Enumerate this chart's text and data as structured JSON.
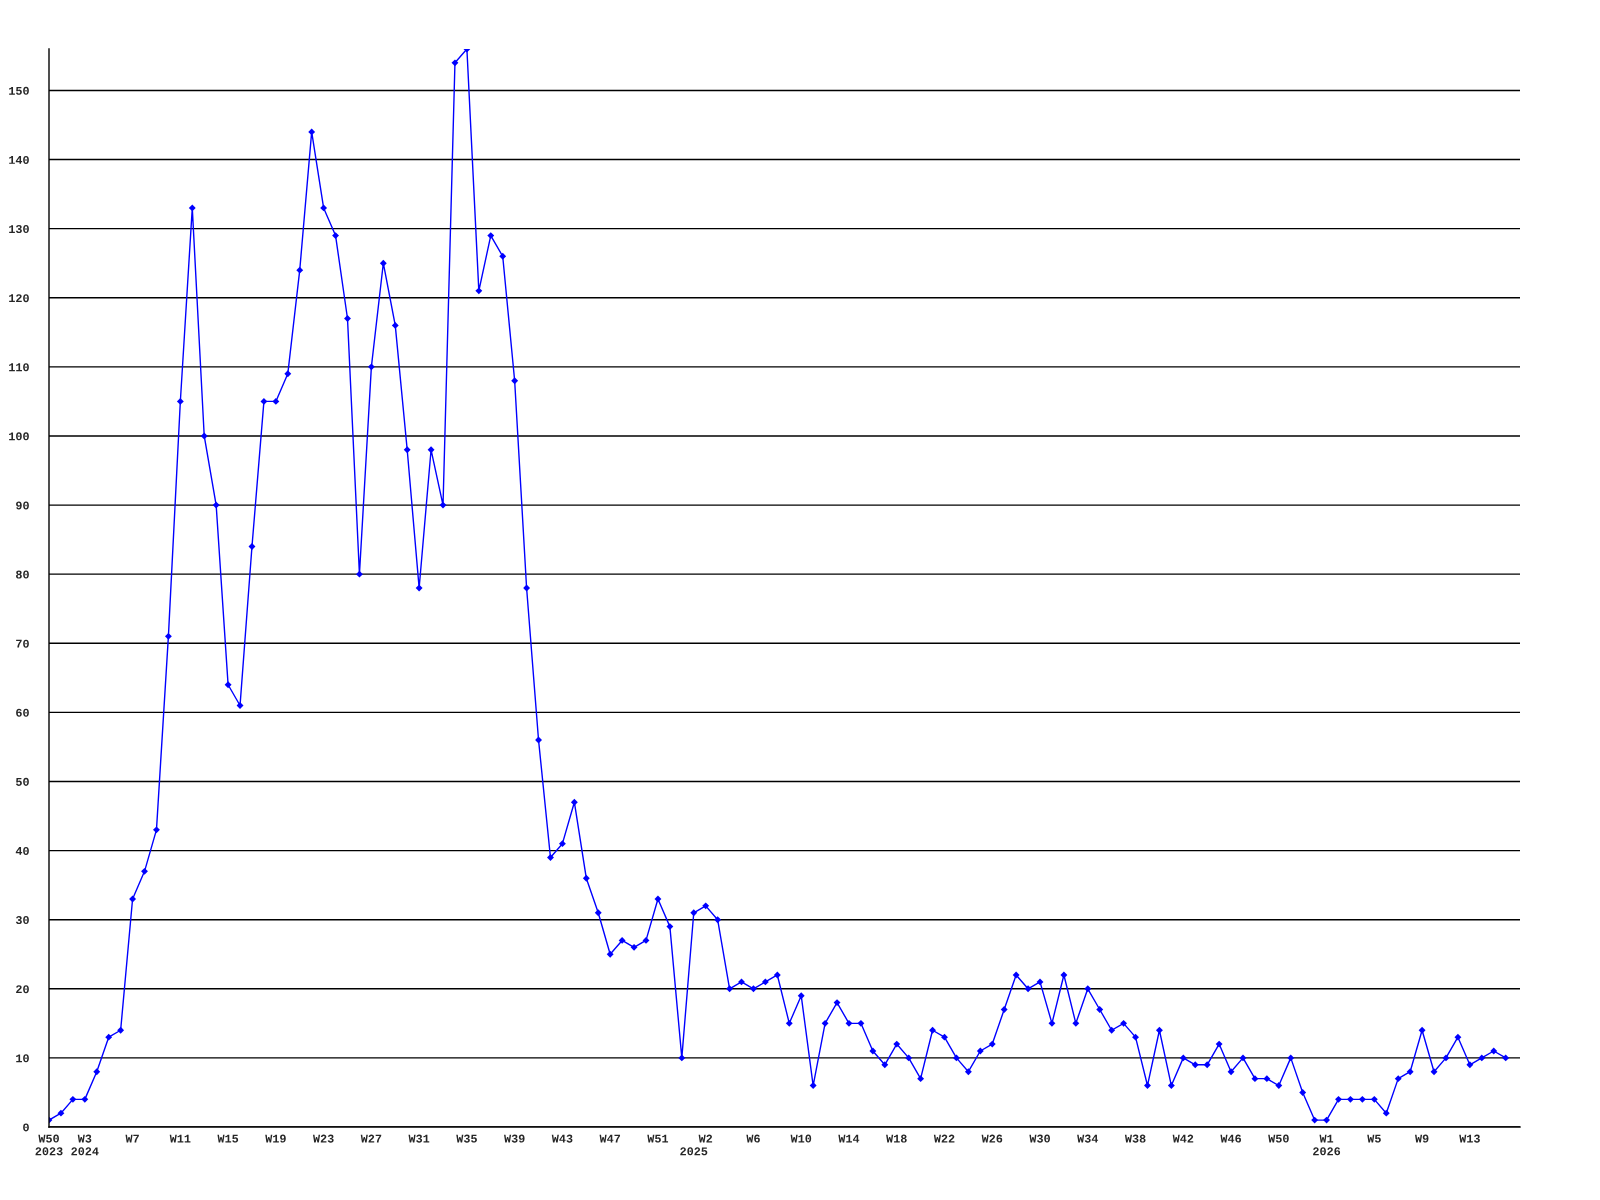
{
  "chart_data": {
    "type": "line",
    "categories": [
      "W50\n2023",
      null,
      null,
      "W3\n2024",
      null,
      null,
      null,
      "W7",
      null,
      null,
      null,
      "W11",
      null,
      null,
      null,
      "W15",
      null,
      null,
      null,
      "W19",
      null,
      null,
      null,
      "W23",
      null,
      null,
      null,
      "W27",
      null,
      null,
      null,
      "W31",
      null,
      null,
      null,
      "W35",
      null,
      null,
      null,
      "W39",
      null,
      null,
      null,
      "W43",
      null,
      null,
      null,
      "W47",
      null,
      null,
      null,
      "W51",
      null,
      null,
      "\n2025",
      "W2",
      null,
      null,
      null,
      "W6",
      null,
      null,
      null,
      "W10",
      null,
      null,
      null,
      "W14",
      null,
      null,
      null,
      "W18",
      null,
      null,
      null,
      "W22",
      null,
      null,
      null,
      "W26",
      null,
      null,
      null,
      "W30",
      null,
      null,
      null,
      "W34",
      null,
      null,
      null,
      "W38",
      null,
      null,
      null,
      "W42",
      null,
      null,
      null,
      "W46",
      null,
      null,
      null,
      "W50",
      null,
      null,
      null,
      "W1\n2026",
      null,
      null,
      null,
      "W5",
      null,
      null,
      null,
      "W9",
      null,
      null,
      null,
      "W13",
      null,
      null,
      null
    ],
    "series": [
      {
        "color": "#0000ff",
        "values": [
          1,
          2,
          4,
          4,
          8,
          13,
          14,
          33,
          37,
          43,
          71,
          105,
          133,
          100,
          90,
          64,
          61,
          84,
          105,
          105,
          109,
          124,
          144,
          133,
          129,
          117,
          80,
          110,
          125,
          116,
          98,
          78,
          98,
          90,
          154,
          156,
          121,
          129,
          126,
          108,
          78,
          56,
          39,
          41,
          47,
          36,
          31,
          25,
          27,
          26,
          27,
          33,
          29,
          10,
          31,
          32,
          30,
          20,
          21,
          20,
          21,
          22,
          15,
          19,
          6,
          15,
          18,
          15,
          15,
          11,
          9,
          12,
          10,
          7,
          14,
          13,
          10,
          8,
          11,
          12,
          17,
          22,
          20,
          21,
          15,
          22,
          15,
          20,
          17,
          14,
          15,
          13,
          6,
          14,
          6,
          10,
          9,
          9,
          12,
          8,
          10,
          7,
          7,
          6,
          10,
          5,
          1,
          1,
          4,
          4,
          4,
          4,
          2,
          7,
          8,
          14,
          8,
          10,
          13,
          9,
          10,
          11,
          10
        ]
      }
    ],
    "ylim": [
      0,
      156
    ],
    "yticks": [
      0,
      10,
      20,
      30,
      40,
      50,
      60,
      70,
      80,
      90,
      100,
      110,
      120,
      130,
      140,
      150
    ],
    "grid": "y",
    "legend": false,
    "marker": "diamond",
    "line_style": "solid"
  }
}
